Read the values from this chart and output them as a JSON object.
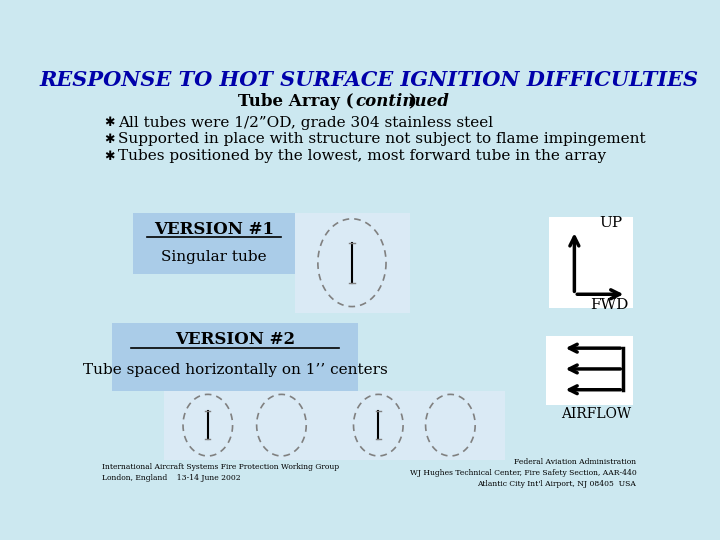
{
  "bg_color": "#cce8f0",
  "title": "RESPONSE TO HOT SURFACE IGNITION DIFFICULTIES",
  "title_color": "#0000aa",
  "title_fontsize": 15,
  "subtitle_fontsize": 12,
  "bullets": [
    "All tubes were 1/2”OD, grade 304 stainless steel",
    "Supported in place with structure not subject to flame impingement",
    "Tubes positioned by the lowest, most forward tube in the array"
  ],
  "bullet_fontsize": 11,
  "version1_label": "VERSION #1",
  "version1_sub": "Singular tube",
  "version2_label": "VERSION #2",
  "version2_sub": "Tube spaced horizontally on 1’’ centers",
  "box_color": "#aacce8",
  "footer_left": "International Aircraft Systems Fire Protection Working Group\nLondon, England    13-14 June 2002",
  "footer_right": "Federal Aviation Administration\nWJ Hughes Technical Center, Fire Safety Section, AAR-440\nAtlantic City Int'l Airport, NJ 08405  USA"
}
